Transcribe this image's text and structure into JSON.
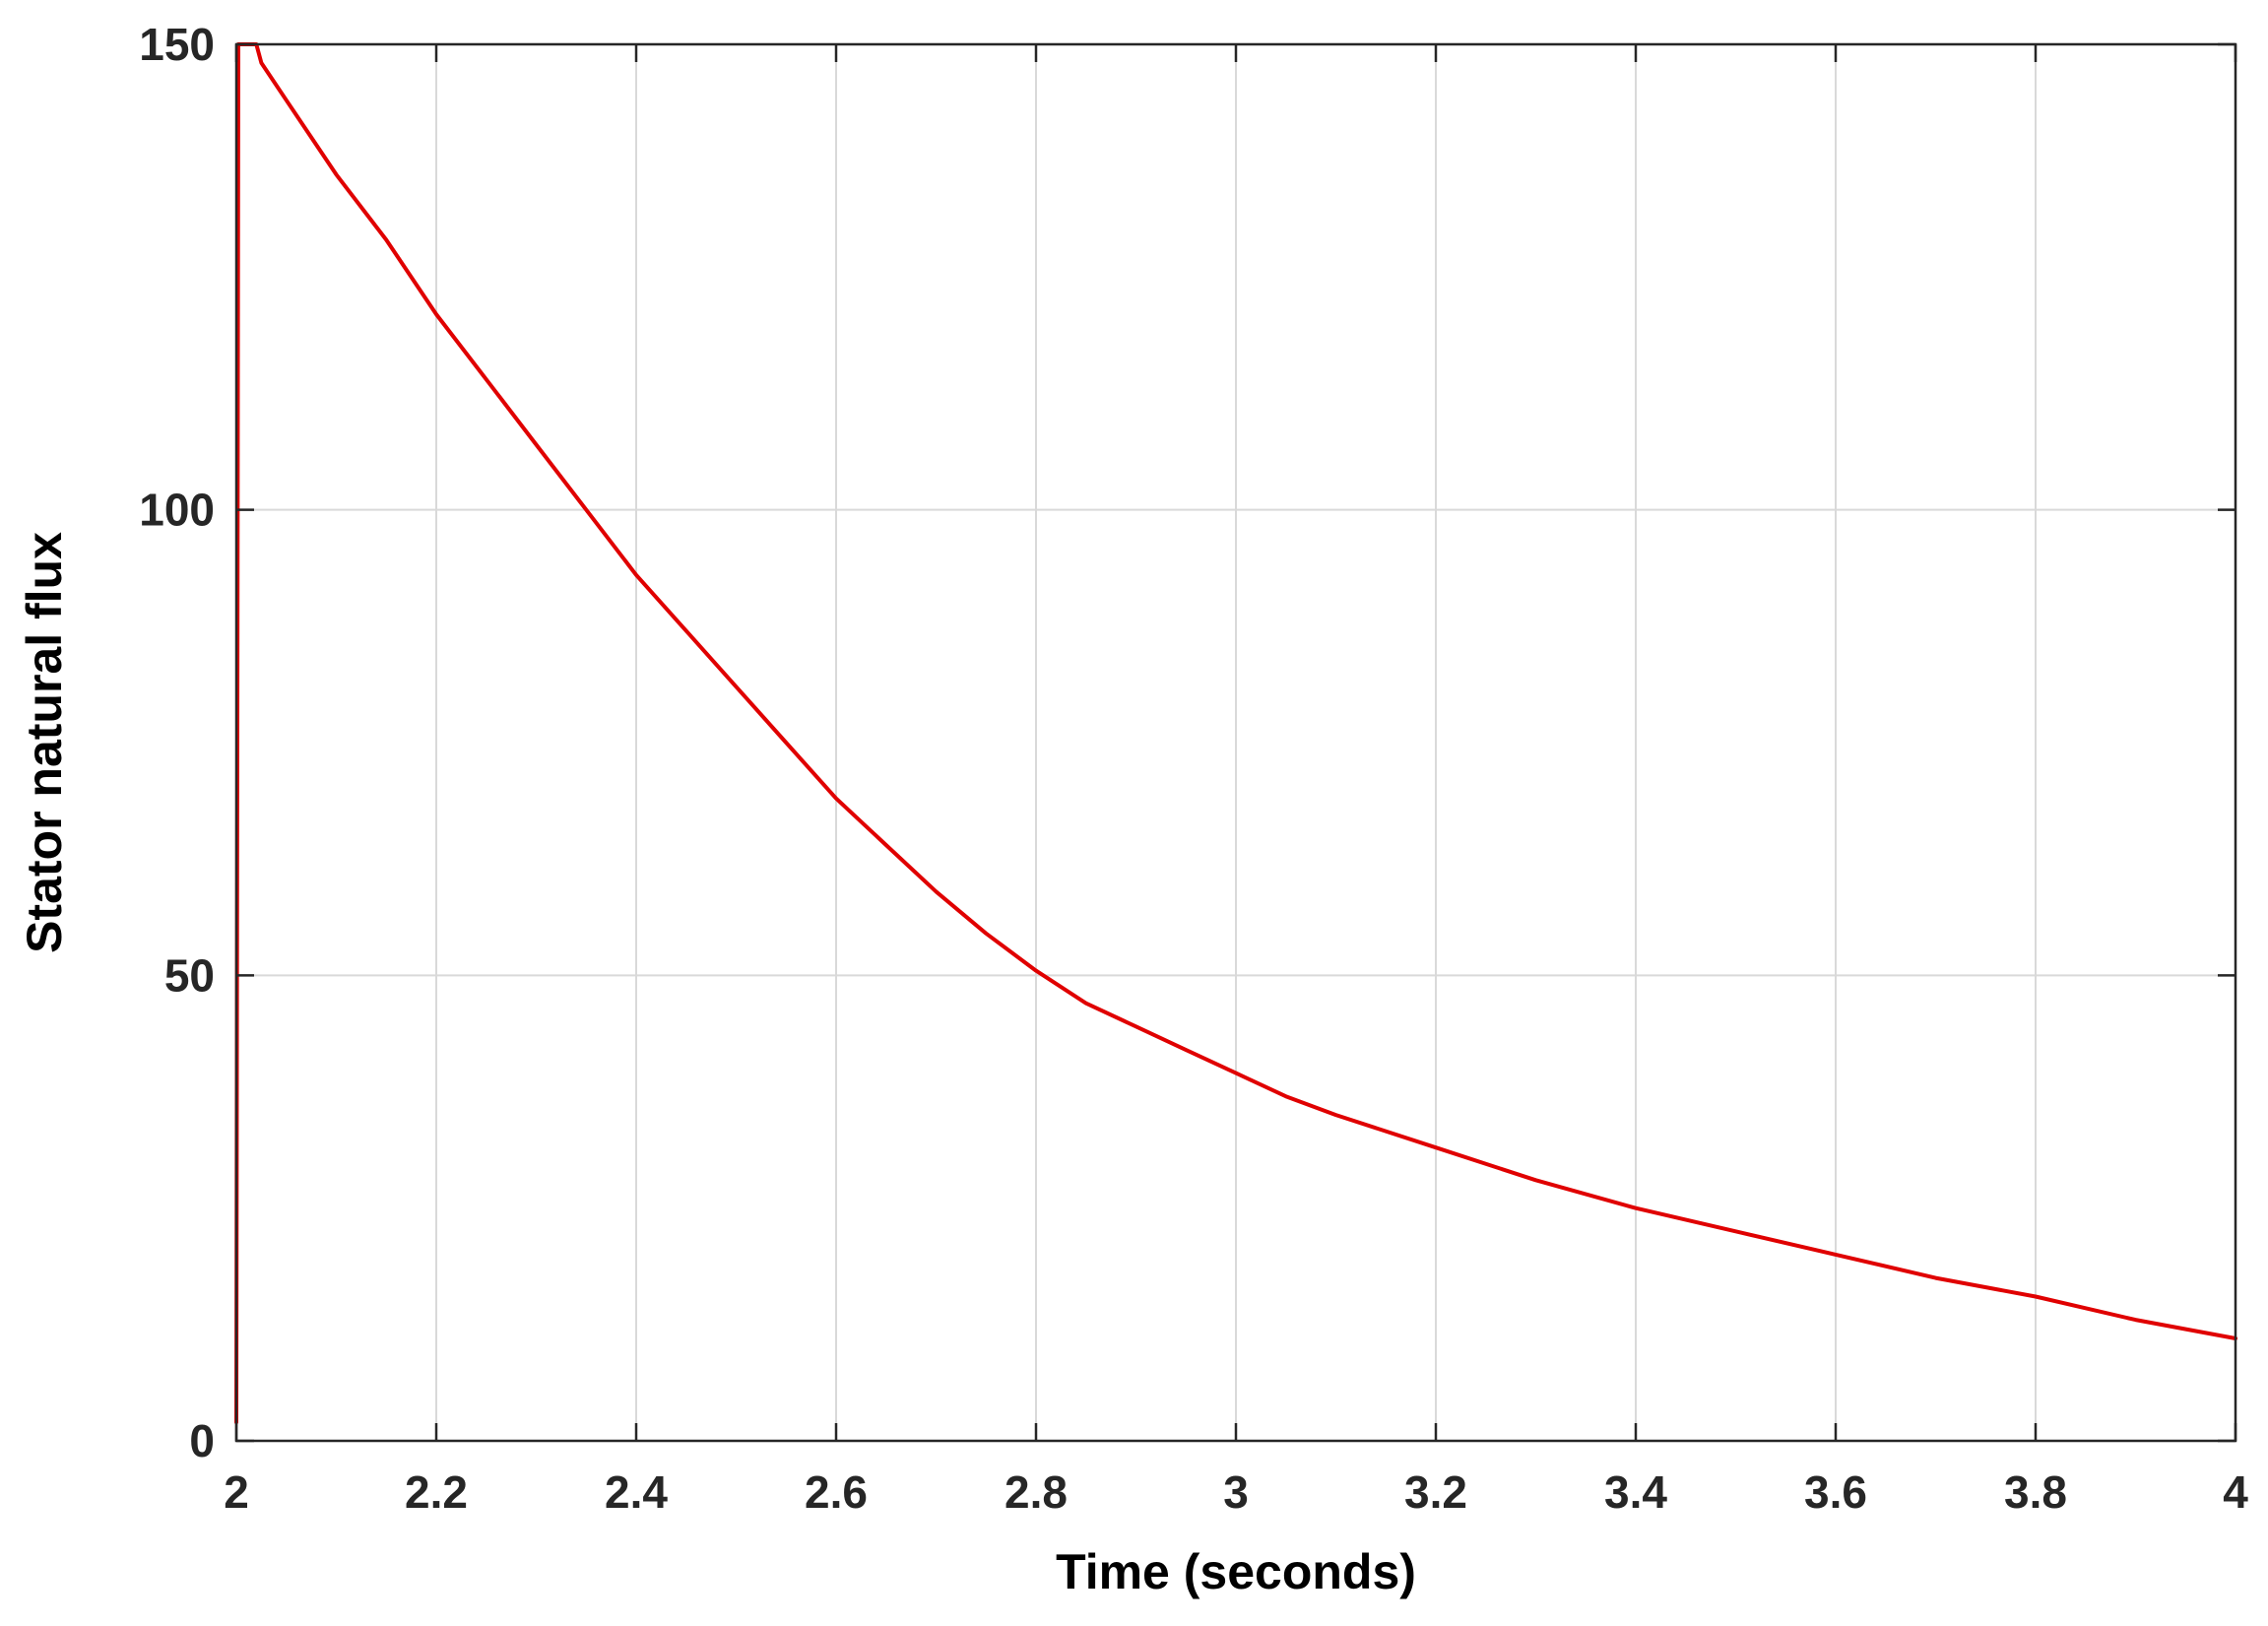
{
  "chart_data": {
    "type": "line",
    "title": "",
    "xlabel": "Time (seconds)",
    "ylabel": "Stator natural flux",
    "xlim": [
      2,
      4
    ],
    "ylim": [
      0,
      150
    ],
    "xticks": [
      2,
      2.2,
      2.4,
      2.6,
      2.8,
      3,
      3.2,
      3.4,
      3.6,
      3.8,
      4
    ],
    "xtick_labels": [
      "2",
      "2.2",
      "2.4",
      "2.6",
      "2.8",
      "3",
      "3.2",
      "3.4",
      "3.6",
      "3.8",
      "4"
    ],
    "yticks": [
      0,
      50,
      100,
      150
    ],
    "ytick_labels": [
      "0",
      "50",
      "100",
      "150"
    ],
    "grid": true,
    "legend": "none",
    "series": [
      {
        "color": "#e00000",
        "x": [
          2.0,
          2.002,
          2.004,
          2.02,
          2.025,
          2.05,
          2.1,
          2.15,
          2.2,
          2.25,
          2.3,
          2.35,
          2.4,
          2.45,
          2.5,
          2.55,
          2.6,
          2.65,
          2.7,
          2.75,
          2.8,
          2.85,
          2.9,
          2.95,
          3.0,
          3.05,
          3.1,
          3.2,
          3.3,
          3.4,
          3.5,
          3.6,
          3.7,
          3.8,
          3.9,
          4.0
        ],
        "y": [
          2,
          150,
          150,
          150,
          148,
          144,
          136,
          129,
          121,
          114,
          107,
          100,
          93,
          87,
          81,
          75,
          69,
          64,
          59,
          54.5,
          50.5,
          47,
          44.5,
          42,
          39.5,
          37,
          35,
          31.5,
          28,
          25,
          22.5,
          20,
          17.5,
          15.5,
          13,
          11
        ]
      }
    ]
  }
}
